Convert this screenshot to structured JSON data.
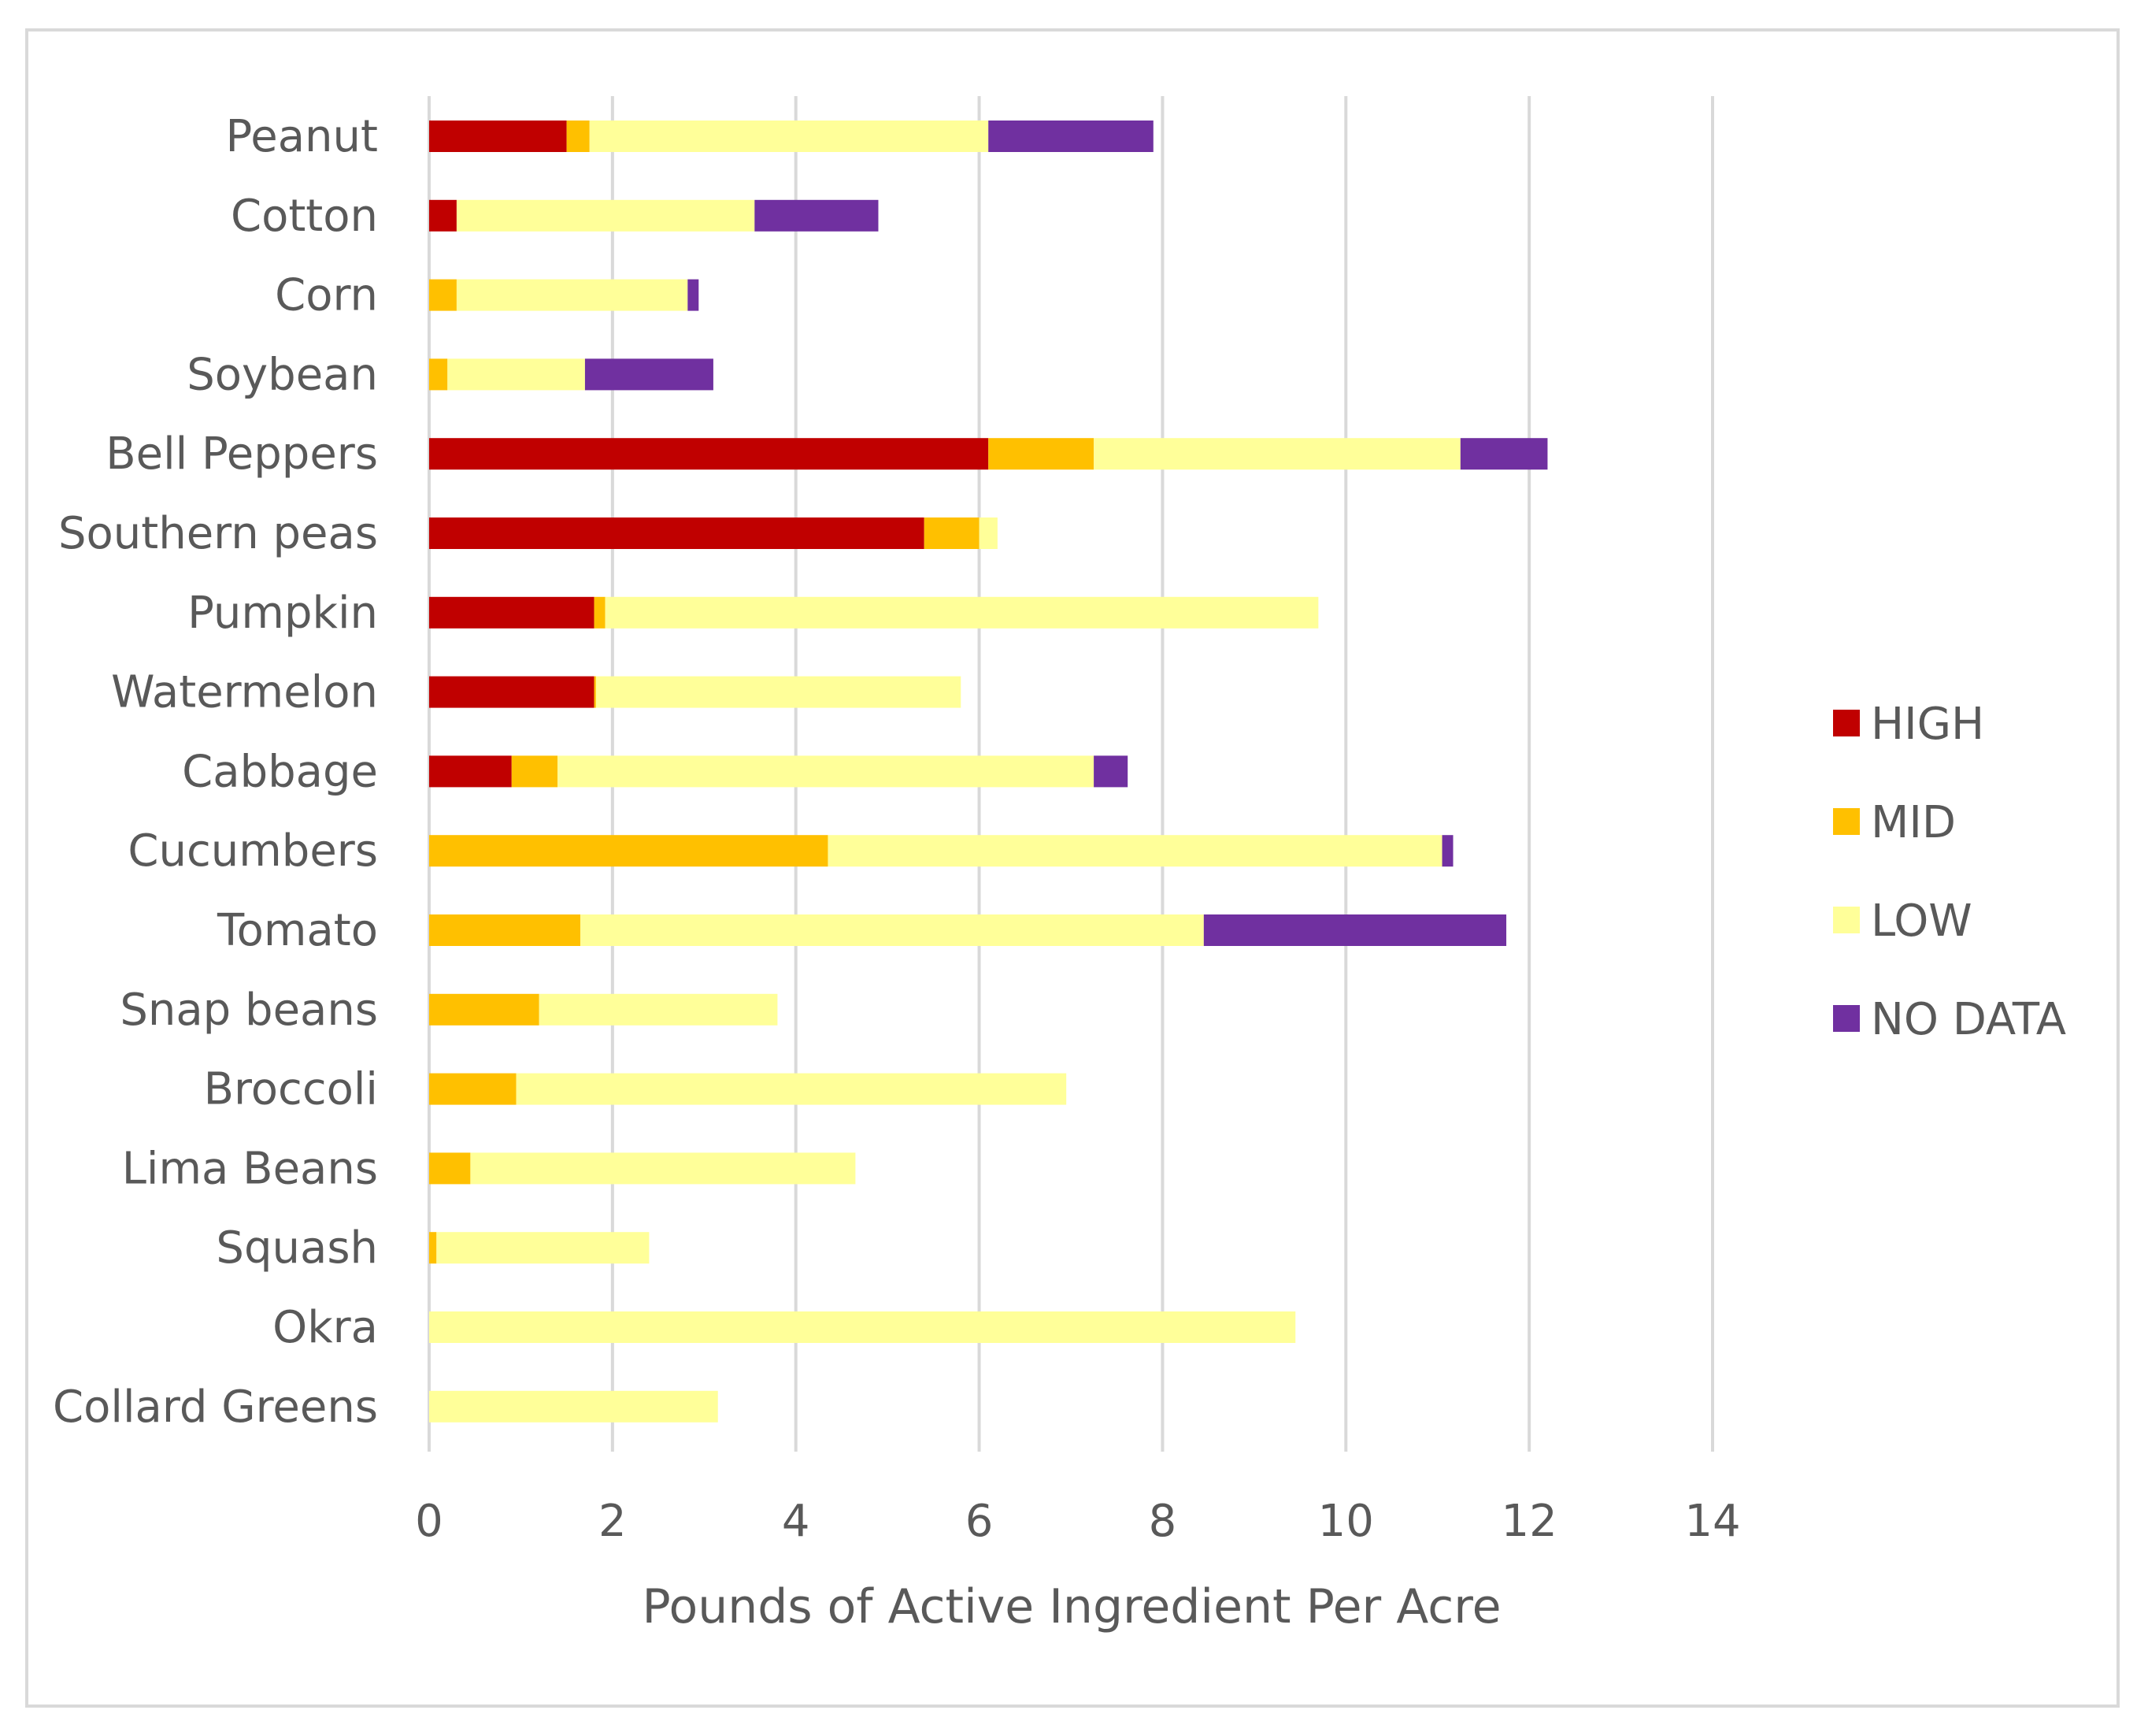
{
  "chart_data": {
    "type": "bar",
    "orientation": "horizontal",
    "stacked": true,
    "title": "",
    "xlabel": "Pounds of Active Ingredient Per Acre",
    "ylabel": "",
    "xlim": [
      0,
      14
    ],
    "xticks": [
      0,
      2,
      4,
      6,
      8,
      10,
      12,
      14
    ],
    "grid": true,
    "legend_position": "right",
    "categories": [
      "Peanut",
      "Cotton",
      "Corn",
      "Soybean",
      "Bell Peppers",
      "Southern peas",
      "Pumpkin",
      "Watermelon",
      "Cabbage",
      "Cucumbers",
      "Tomato",
      "Snap beans",
      "Broccoli",
      "Lima Beans",
      "Squash",
      "Okra",
      "Collard Greens"
    ],
    "series": [
      {
        "name": "HIGH",
        "color": "#c00000",
        "values": [
          1.5,
          0.3,
          0,
          0,
          6.1,
          5.4,
          1.8,
          1.8,
          0.9,
          0,
          0,
          0,
          0,
          0,
          0,
          0,
          0
        ]
      },
      {
        "name": "MID",
        "color": "#ffc000",
        "values": [
          0.25,
          0,
          0.3,
          0.2,
          1.15,
          0.6,
          0.12,
          0.02,
          0.5,
          4.35,
          1.65,
          1.2,
          0.95,
          0.45,
          0.08,
          0,
          0
        ]
      },
      {
        "name": "LOW",
        "color": "#ffff99",
        "values": [
          4.35,
          3.25,
          2.52,
          1.5,
          4.0,
          0.2,
          7.78,
          3.98,
          5.85,
          6.7,
          6.8,
          2.6,
          6.0,
          4.2,
          2.32,
          9.45,
          3.15
        ]
      },
      {
        "name": "NO DATA",
        "color": "#7030a0",
        "values": [
          1.8,
          1.35,
          0.12,
          1.4,
          0.95,
          0,
          0,
          0,
          0.37,
          0.12,
          3.3,
          0,
          0,
          0,
          0,
          0,
          0
        ]
      }
    ]
  }
}
